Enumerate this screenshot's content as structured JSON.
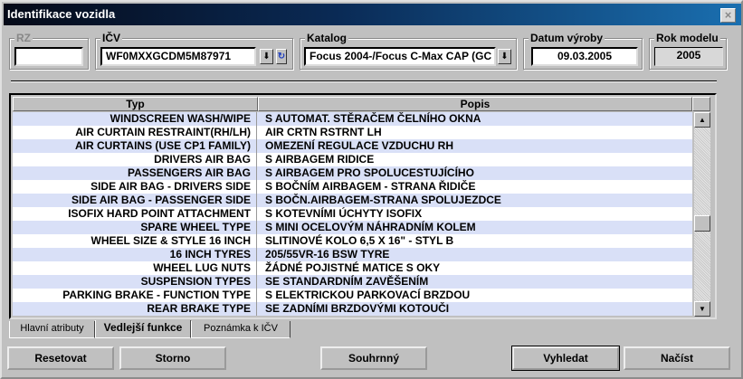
{
  "window": {
    "title": "Identifikace vozidla",
    "close": "×"
  },
  "fields": {
    "rz": {
      "label": "RZ",
      "value": ""
    },
    "icv": {
      "label": "IČV",
      "value": "WF0MXXGCDM5M87971"
    },
    "katalog": {
      "label": "Katalog",
      "value": "Focus 2004-/Focus C-Max CAP (GC"
    },
    "datum": {
      "label": "Datum výroby",
      "value": "09.03.2005"
    },
    "rok": {
      "label": "Rok modelu",
      "value": "2005"
    }
  },
  "table": {
    "columns": [
      "Typ",
      "Popis"
    ],
    "rows": [
      [
        "WINDSCREEN WASH/WIPE",
        "S AUTOMAT. STĚRAČEM ČELNÍHO OKNA"
      ],
      [
        "AIR CURTAIN RESTRAINT(RH/LH)",
        "AIR CRTN RSTRNT LH"
      ],
      [
        "AIR CURTAINS (USE CP1 FAMILY)",
        "OMEZENÍ REGULACE VZDUCHU RH"
      ],
      [
        "DRIVERS AIR BAG",
        "S AIRBAGEM RIDICE"
      ],
      [
        "PASSENGERS AIR BAG",
        "S AIRBAGEM PRO SPOLUCESTUJÍCÍHO"
      ],
      [
        "SIDE AIR BAG - DRIVERS SIDE",
        "S BOČNÍM AIRBAGEM - STRANA ŘIDIČE"
      ],
      [
        "SIDE AIR BAG - PASSENGER SIDE",
        "S BOČN.AIRBAGEM-STRANA SPOLUJEZDCE"
      ],
      [
        "ISOFIX HARD POINT ATTACHMENT",
        "S KOTEVNÍMI ÚCHYTY ISOFIX"
      ],
      [
        "SPARE WHEEL TYPE",
        "S MINI OCELOVÝM NÁHRADNÍM KOLEM"
      ],
      [
        "WHEEL SIZE & STYLE 16 INCH",
        "SLITINOVÉ KOLO 6,5 X 16\" - STYL B"
      ],
      [
        "16 INCH TYRES",
        "205/55VR-16 BSW TYRE"
      ],
      [
        "WHEEL LUG NUTS",
        "ŽÁDNÉ POJISTNÉ MATICE S OKY"
      ],
      [
        "SUSPENSION TYPES",
        "SE STANDARDNÍM ZAVĚŠENÍM"
      ],
      [
        "PARKING BRAKE - FUNCTION TYPE",
        "S ELEKTRICKOU PARKOVACÍ BRZDOU"
      ],
      [
        "REAR BRAKE TYPE",
        "SE ZADNÍMI BRZDOVÝMI KOTOUČI"
      ]
    ],
    "row_colors": [
      "#d9e0f7",
      "#ffffff"
    ]
  },
  "tabs": [
    {
      "label": "Hlavní atributy",
      "active": false
    },
    {
      "label": "Vedlejší funkce",
      "active": true
    },
    {
      "label": "Poznámka k IČV",
      "active": false
    }
  ],
  "buttons": {
    "reset": "Resetovat",
    "storno": "Storno",
    "souhrnny": "Souhrnný",
    "vyhledat": "Vyhledat",
    "nacist": "Načíst"
  },
  "icons": {
    "dropdown": "down-arrow-icon",
    "refresh": "refresh-icon"
  }
}
